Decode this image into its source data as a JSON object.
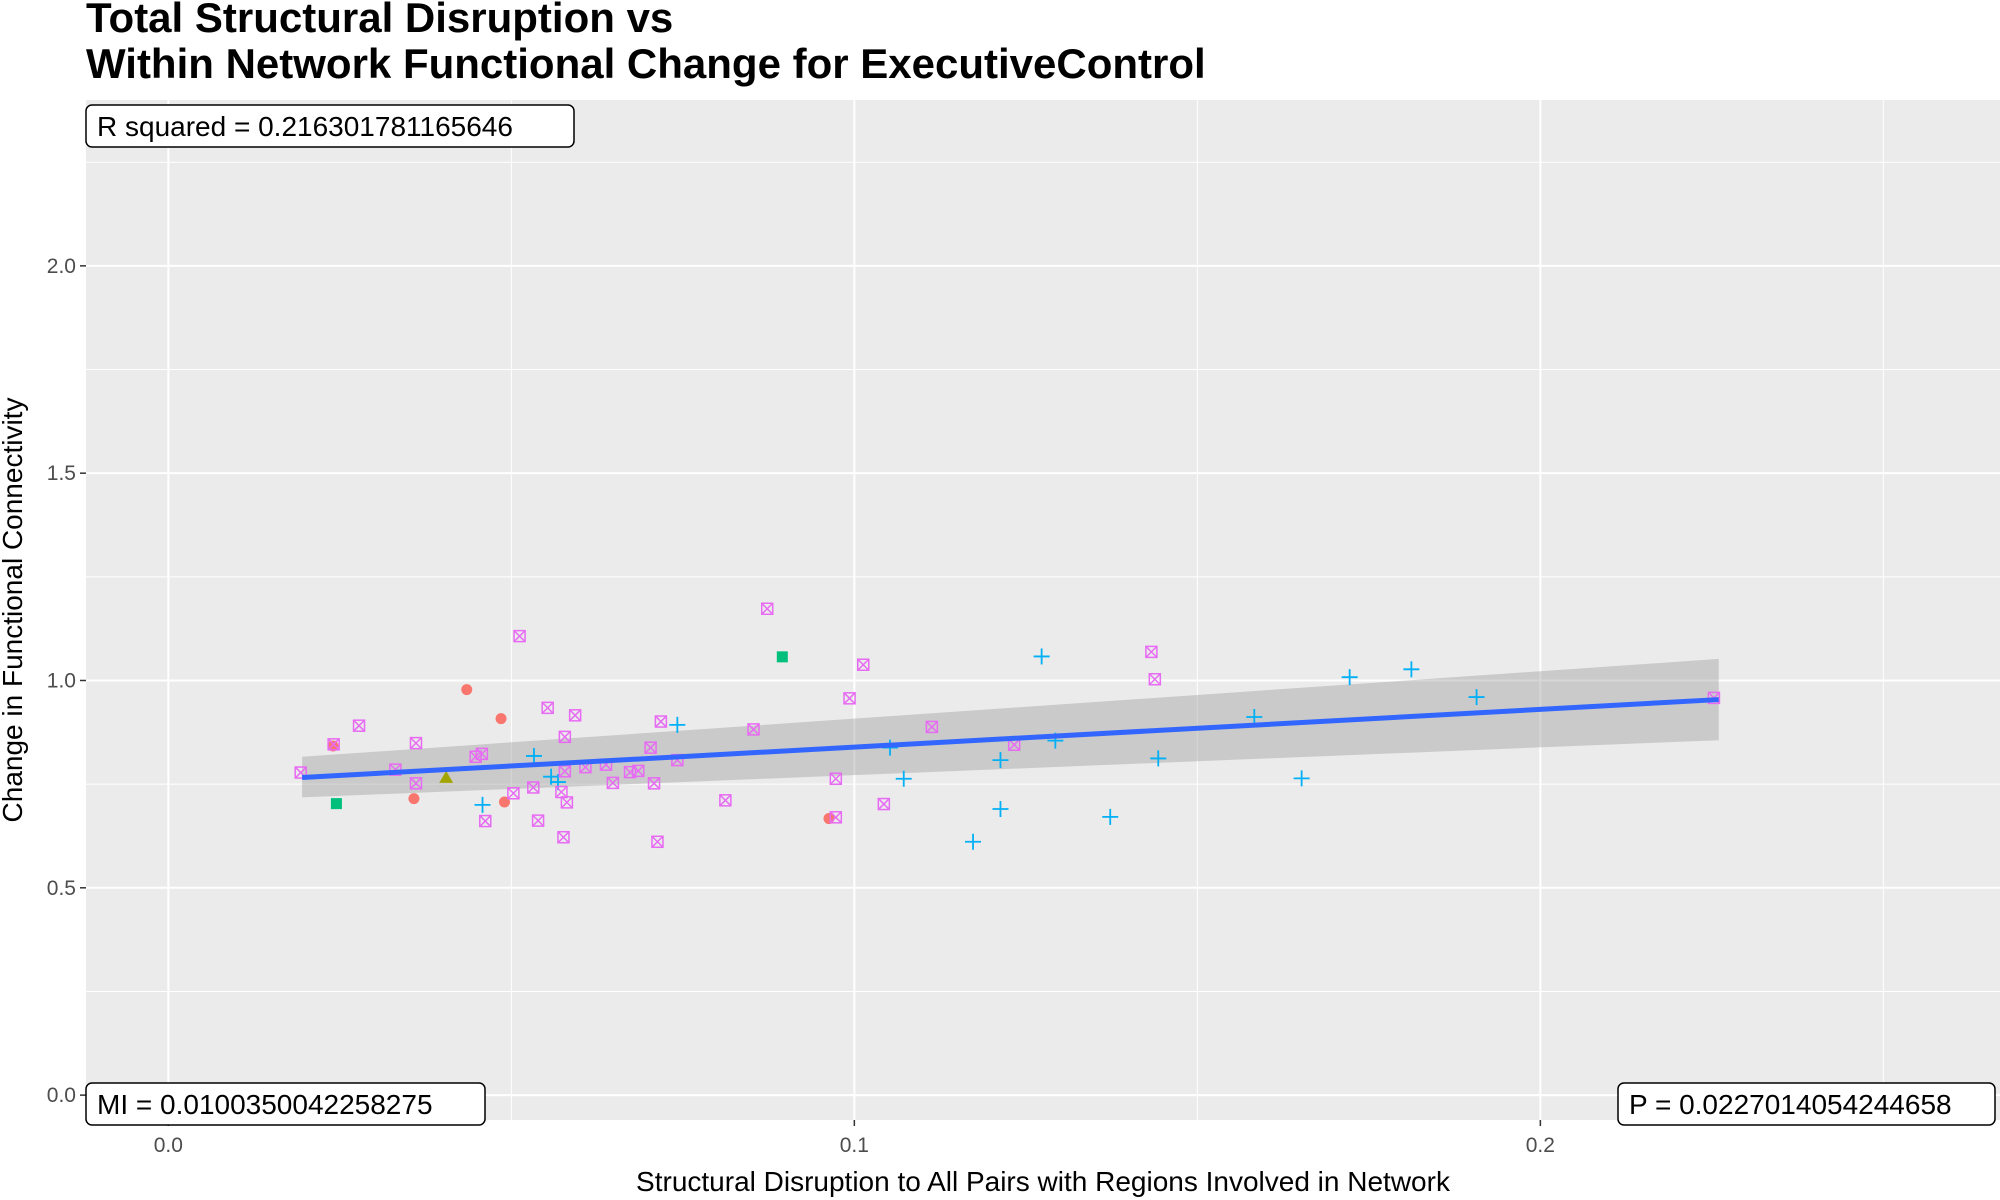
{
  "chart_data": {
    "type": "scatter",
    "title_lines": [
      "Total Structural Disruption vs",
      "Within Network Functional Change for ExecutiveControl"
    ],
    "xlabel": "Structural Disruption to All Pairs with Regions Involved in Network",
    "ylabel": "Change in Functional Connectivity",
    "xlim": [
      -0.012,
      0.267
    ],
    "ylim": [
      -0.06,
      2.4
    ],
    "x_ticks": [
      0.0,
      0.1,
      0.2
    ],
    "x_tick_labels": [
      "0.0",
      "0.1",
      "0.2"
    ],
    "y_ticks": [
      0.0,
      0.5,
      1.0,
      1.5,
      2.0
    ],
    "y_tick_labels": [
      "0.0",
      "0.5",
      "1.0",
      "1.5",
      "2.0"
    ],
    "grid": true,
    "legend": "none",
    "annotations": {
      "r_squared": "R squared =  0.216301781165646",
      "mi": "MI =  0.0100350042258275",
      "p": "P =  0.0227014054244658"
    },
    "fit_line": {
      "x": [
        0.0195,
        0.226
      ],
      "y": [
        0.766,
        0.954
      ],
      "ci_lower": [
        0.718,
        0.856
      ],
      "ci_upper": [
        0.816,
        1.052
      ],
      "color": "#3366ff"
    },
    "series": [
      {
        "shape": "circle",
        "color": "#f8766d",
        "points": [
          [
            0.024,
            0.842
          ],
          [
            0.0435,
            0.978
          ],
          [
            0.0358,
            0.715
          ],
          [
            0.0485,
            0.908
          ],
          [
            0.049,
            0.707
          ],
          [
            0.0963,
            0.667
          ]
        ]
      },
      {
        "shape": "triangle",
        "color": "#a3a500",
        "points": [
          [
            0.0405,
            0.765
          ]
        ]
      },
      {
        "shape": "square",
        "color": "#00bf7d",
        "points": [
          [
            0.0245,
            0.703
          ],
          [
            0.0895,
            1.057
          ]
        ]
      },
      {
        "shape": "plus",
        "color": "#00b0f6",
        "points": [
          [
            0.0458,
            0.7
          ],
          [
            0.0533,
            0.818
          ],
          [
            0.0558,
            0.768
          ],
          [
            0.0568,
            0.755
          ],
          [
            0.0742,
            0.893
          ],
          [
            0.1052,
            0.838
          ],
          [
            0.1072,
            0.763
          ],
          [
            0.1173,
            0.611
          ],
          [
            0.1213,
            0.808
          ],
          [
            0.1213,
            0.69
          ],
          [
            0.1273,
            1.058
          ],
          [
            0.1293,
            0.855
          ],
          [
            0.1373,
            0.671
          ],
          [
            0.1443,
            0.812
          ],
          [
            0.1583,
            0.912
          ],
          [
            0.1652,
            0.764
          ],
          [
            0.1722,
            1.008
          ],
          [
            0.1812,
            1.027
          ],
          [
            0.1907,
            0.96
          ]
        ]
      },
      {
        "shape": "boxtimes",
        "color": "#e76bf3",
        "points": [
          [
            0.0193,
            0.778
          ],
          [
            0.0241,
            0.846
          ],
          [
            0.0278,
            0.891
          ],
          [
            0.0331,
            0.785
          ],
          [
            0.0361,
            0.849
          ],
          [
            0.0361,
            0.752
          ],
          [
            0.0448,
            0.816
          ],
          [
            0.0457,
            0.823
          ],
          [
            0.0462,
            0.661
          ],
          [
            0.0503,
            0.728
          ],
          [
            0.0512,
            1.107
          ],
          [
            0.0532,
            0.742
          ],
          [
            0.0539,
            0.662
          ],
          [
            0.0553,
            0.934
          ],
          [
            0.0573,
            0.731
          ],
          [
            0.0576,
            0.622
          ],
          [
            0.0578,
            0.781
          ],
          [
            0.0578,
            0.864
          ],
          [
            0.0581,
            0.706
          ],
          [
            0.0593,
            0.916
          ],
          [
            0.0608,
            0.791
          ],
          [
            0.0638,
            0.797
          ],
          [
            0.0648,
            0.753
          ],
          [
            0.0673,
            0.779
          ],
          [
            0.0685,
            0.782
          ],
          [
            0.0703,
            0.838
          ],
          [
            0.0708,
            0.752
          ],
          [
            0.0713,
            0.611
          ],
          [
            0.0718,
            0.901
          ],
          [
            0.0742,
            0.808
          ],
          [
            0.0812,
            0.711
          ],
          [
            0.0853,
            0.882
          ],
          [
            0.0873,
            1.173
          ],
          [
            0.0973,
            0.763
          ],
          [
            0.0973,
            0.67
          ],
          [
            0.0993,
            0.957
          ],
          [
            0.1013,
            1.038
          ],
          [
            0.1043,
            0.702
          ],
          [
            0.1113,
            0.888
          ],
          [
            0.1233,
            0.845
          ],
          [
            0.1433,
            1.069
          ],
          [
            0.1438,
            1.003
          ],
          [
            0.2253,
            0.958
          ]
        ]
      }
    ]
  }
}
